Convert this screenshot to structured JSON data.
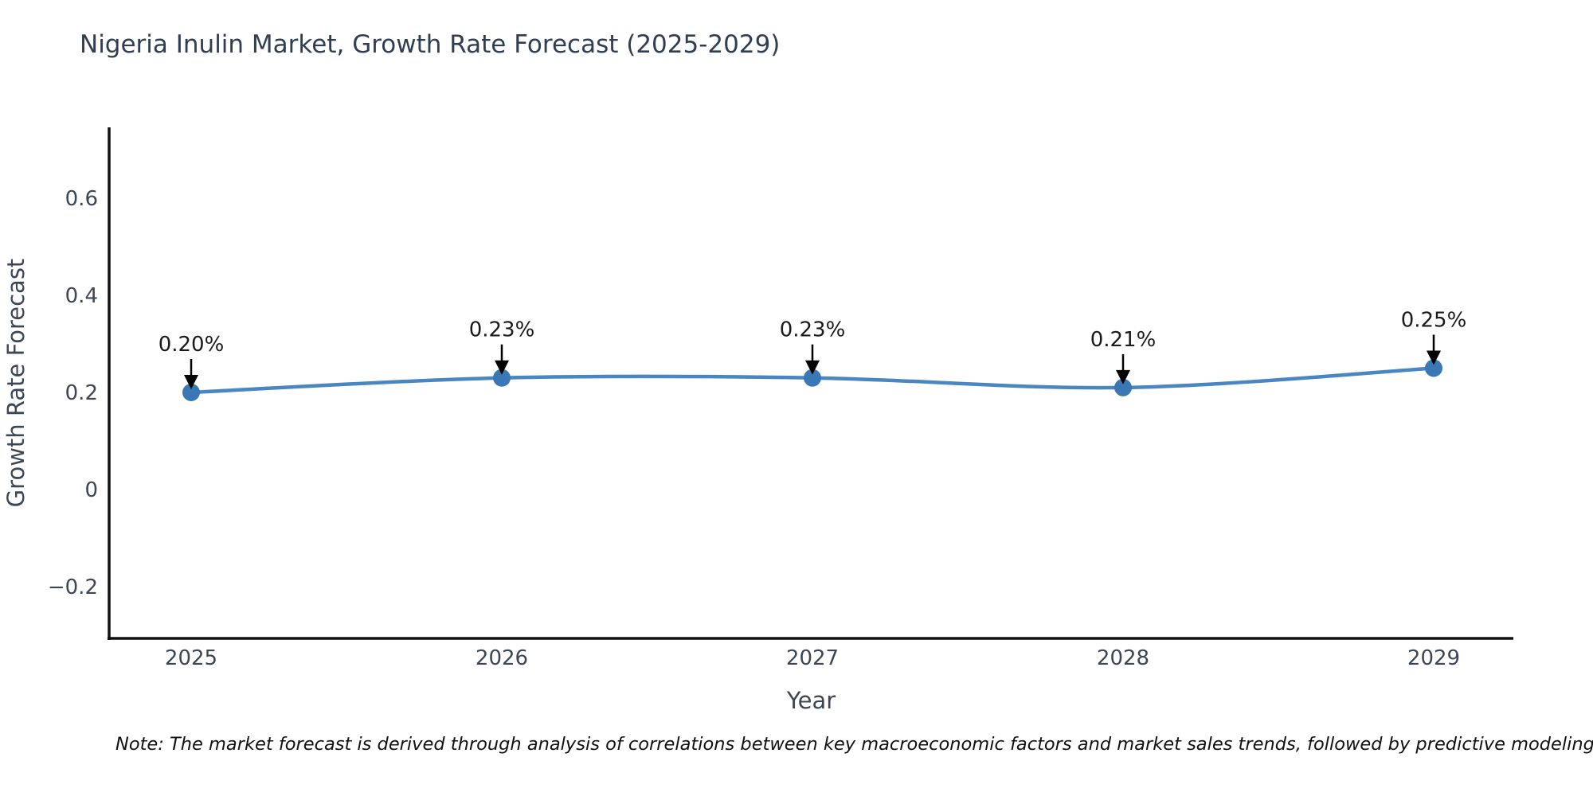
{
  "title": "Nigeria Inulin Market, Growth Rate Forecast (2025-2029)",
  "note": "Note: The market forecast is derived through analysis of correlations between key macroeconomic factors and market sales trends, followed by predictive modeling to project future sales.",
  "colors": {
    "line": "#4a86c2",
    "marker": "#3a78b5",
    "axis": "#111111",
    "tick_text": "#3c4654",
    "title_text": "#2f3e52",
    "annotation_text": "#1a1a1a",
    "arrow": "#000000"
  },
  "chart_data": {
    "type": "line",
    "x": [
      2025,
      2026,
      2027,
      2028,
      2029
    ],
    "values": [
      0.2,
      0.23,
      0.23,
      0.21,
      0.25
    ],
    "point_labels": [
      "0.20%",
      "0.23%",
      "0.23%",
      "0.21%",
      "0.25%"
    ],
    "title": "Nigeria Inulin Market, Growth Rate Forecast (2025-2029)",
    "xlabel": "Year",
    "ylabel": "Growth Rate Forecast",
    "yticks": [
      0.6,
      0.4,
      0.2,
      0,
      -0.2
    ],
    "xticks": [
      2025,
      2026,
      2027,
      2028,
      2029
    ],
    "ylim": [
      -0.31,
      0.75
    ],
    "xlim": [
      2024.74,
      2029.26
    ],
    "grid": false,
    "legend": false,
    "markers": true,
    "annotations_arrow": true
  }
}
